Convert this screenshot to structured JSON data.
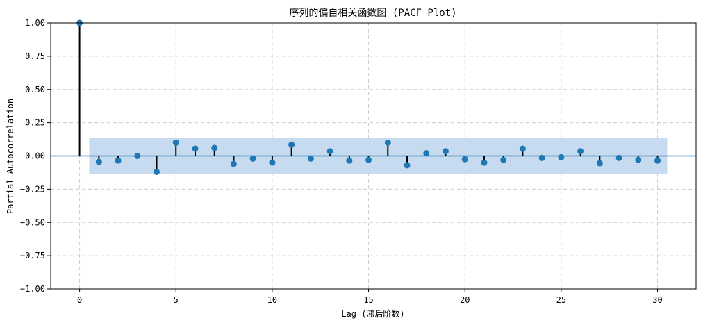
{
  "chart_data": {
    "type": "stem",
    "title": "序列的偏自相关函数图 (PACF Plot)",
    "xlabel": "Lag (滞后阶数)",
    "ylabel": "Partial Autocorrelation",
    "xlim": [
      -1.5,
      32
    ],
    "ylim": [
      -1.0,
      1.0
    ],
    "xticks": [
      0,
      5,
      10,
      15,
      20,
      25,
      30
    ],
    "yticks": [
      -1.0,
      -0.75,
      -0.5,
      -0.25,
      0.0,
      0.25,
      0.5,
      0.75,
      1.0
    ],
    "ytick_labels": [
      "−1.00",
      "−0.75",
      "−0.50",
      "−0.25",
      "0.00",
      "0.25",
      "0.50",
      "0.75",
      "1.00"
    ],
    "xtick_labels": [
      "0",
      "5",
      "10",
      "15",
      "20",
      "25",
      "30"
    ],
    "grid": true,
    "confidence_band": {
      "lag_start": 0.5,
      "lag_end": 30.5,
      "lower": -0.135,
      "upper": 0.135
    },
    "x": [
      0,
      1,
      2,
      3,
      4,
      5,
      6,
      7,
      8,
      9,
      10,
      11,
      12,
      13,
      14,
      15,
      16,
      17,
      18,
      19,
      20,
      21,
      22,
      23,
      24,
      25,
      26,
      27,
      28,
      29,
      30
    ],
    "values": [
      1.0,
      -0.045,
      -0.035,
      0.0,
      -0.12,
      0.1,
      0.055,
      0.06,
      -0.06,
      -0.02,
      -0.05,
      0.085,
      -0.02,
      0.035,
      -0.035,
      -0.03,
      0.1,
      -0.07,
      0.02,
      0.035,
      -0.025,
      -0.05,
      -0.03,
      0.055,
      -0.015,
      -0.01,
      0.035,
      -0.055,
      -0.015,
      -0.03,
      -0.035
    ],
    "colors": {
      "marker": "#1f77b4",
      "stem": "#000000",
      "baseline": "#1f77b4",
      "band": "#c6dbef",
      "grid": "#cccccc"
    }
  }
}
